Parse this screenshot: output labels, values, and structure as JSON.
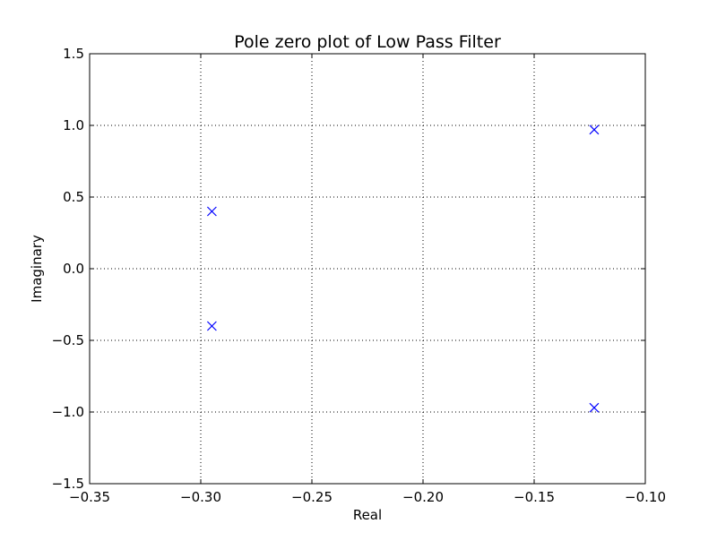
{
  "chart_data": {
    "type": "scatter",
    "title": "Pole zero plot of Low Pass Filter",
    "xlabel": "Real",
    "ylabel": "Imaginary",
    "xlim": [
      -0.35,
      -0.1
    ],
    "ylim": [
      -1.5,
      1.5
    ],
    "x_ticks": [
      -0.35,
      -0.3,
      -0.25,
      -0.2,
      -0.15,
      -0.1
    ],
    "x_tick_labels": [
      "−0.35",
      "−0.30",
      "−0.25",
      "−0.20",
      "−0.15",
      "−0.10"
    ],
    "y_ticks": [
      1.5,
      1.0,
      0.5,
      0.0,
      -0.5,
      -1.0,
      -1.5
    ],
    "y_tick_labels": [
      "1.5",
      "1.0",
      "0.5",
      "0.0",
      "−0.5",
      "−1.0",
      "−1.5"
    ],
    "grid": true,
    "grid_style": "dotted",
    "marker": "x",
    "marker_color": "#0000ff",
    "series": [
      {
        "points": [
          {
            "x": -0.295,
            "y": 0.4
          },
          {
            "x": -0.295,
            "y": -0.4
          },
          {
            "x": -0.123,
            "y": 0.97
          },
          {
            "x": -0.123,
            "y": -0.97
          }
        ]
      }
    ]
  }
}
